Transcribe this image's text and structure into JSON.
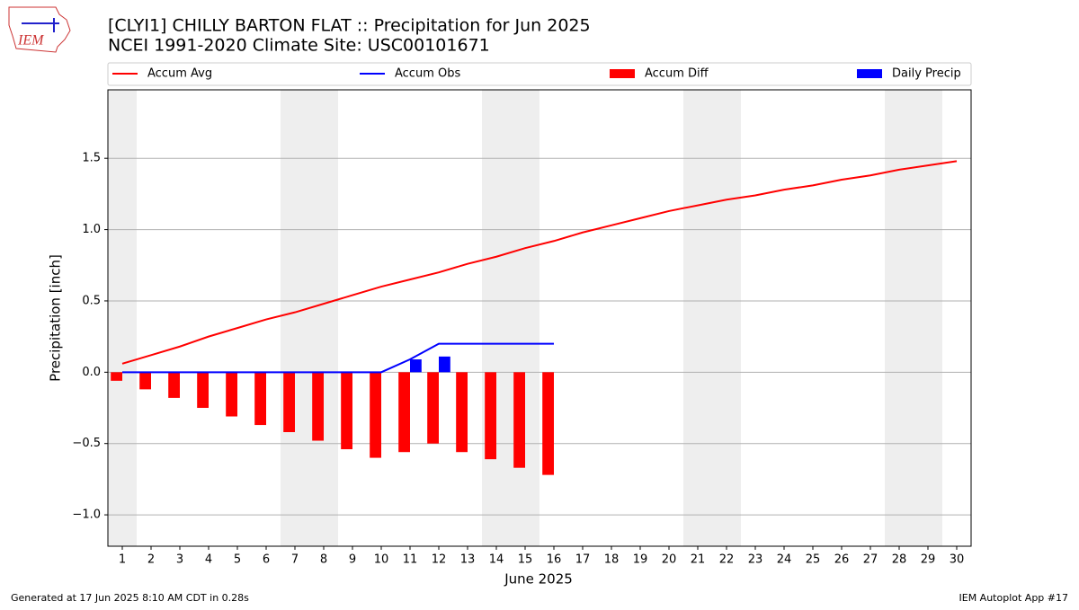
{
  "chart_data": {
    "type": "line-bar",
    "title": "[CLYI1] CHILLY BARTON FLAT :: Precipitation for Jun 2025",
    "subtitle": "NCEI 1991-2020 Climate Site: USC00101671",
    "logo_text": "IEM",
    "ylabel": "Precipitation [inch]",
    "xlabel": "June 2025",
    "footer_left": "Generated at 17 Jun 2025 8:10 AM CDT in 0.28s",
    "footer_right": "IEM Autoplot App #17",
    "x": [
      1,
      2,
      3,
      4,
      5,
      6,
      7,
      8,
      9,
      10,
      11,
      12,
      13,
      14,
      15,
      16,
      17,
      18,
      19,
      20,
      21,
      22,
      23,
      24,
      25,
      26,
      27,
      28,
      29,
      30
    ],
    "xlim": [
      0.5,
      30.5
    ],
    "xticks": [
      1,
      2,
      3,
      4,
      5,
      6,
      7,
      8,
      9,
      10,
      11,
      12,
      13,
      14,
      15,
      16,
      17,
      18,
      19,
      20,
      21,
      22,
      23,
      24,
      25,
      26,
      27,
      28,
      29,
      30
    ],
    "ylim": [
      -1.22,
      1.98
    ],
    "yticks": [
      {
        "value": -1,
        "label": "−1.0"
      },
      {
        "value": -0.5,
        "label": "−0.5"
      },
      {
        "value": 0,
        "label": "0.0"
      },
      0.5,
      {
        "value": 1,
        "label": "1.0"
      },
      1.5
    ],
    "grid": true,
    "shaded_spans": [
      [
        0.5,
        1.5
      ],
      [
        6.5,
        8.5
      ],
      [
        13.5,
        15.5
      ],
      [
        20.5,
        22.5
      ],
      [
        27.5,
        29.5
      ]
    ],
    "shade_color": "#eeeeee",
    "series": [
      {
        "name": "Accum Avg",
        "kind": "line",
        "color": "#ff0000",
        "values": [
          0.06,
          0.12,
          0.18,
          0.25,
          0.31,
          0.37,
          0.42,
          0.48,
          0.54,
          0.6,
          0.65,
          0.7,
          0.76,
          0.81,
          0.87,
          0.92,
          0.98,
          1.03,
          1.08,
          1.13,
          1.17,
          1.21,
          1.24,
          1.28,
          1.31,
          1.35,
          1.38,
          1.42,
          1.45,
          1.48
        ]
      },
      {
        "name": "Accum Obs",
        "kind": "line",
        "color": "#0000ff",
        "values": [
          0,
          0,
          0,
          0,
          0,
          0,
          0,
          0,
          0,
          0,
          0.09,
          0.2,
          0.2,
          0.2,
          0.2,
          0.2,
          null,
          null,
          null,
          null,
          null,
          null,
          null,
          null,
          null,
          null,
          null,
          null,
          null,
          null
        ]
      },
      {
        "name": "Accum Diff",
        "kind": "bar",
        "offset": "left",
        "color": "#ff0000",
        "values": [
          -0.06,
          -0.12,
          -0.18,
          -0.25,
          -0.31,
          -0.37,
          -0.42,
          -0.48,
          -0.54,
          -0.6,
          -0.56,
          -0.5,
          -0.56,
          -0.61,
          -0.67,
          -0.72,
          null,
          null,
          null,
          null,
          null,
          null,
          null,
          null,
          null,
          null,
          null,
          null,
          null,
          null
        ]
      },
      {
        "name": "Daily Precip",
        "kind": "bar",
        "offset": "right",
        "color": "#0000ff",
        "values": [
          0,
          0,
          0,
          0,
          0,
          0,
          0,
          0,
          0,
          0,
          0.09,
          0.11,
          0,
          0,
          0,
          0,
          null,
          null,
          null,
          null,
          null,
          null,
          null,
          null,
          null,
          null,
          null,
          null,
          null,
          null
        ]
      }
    ]
  }
}
